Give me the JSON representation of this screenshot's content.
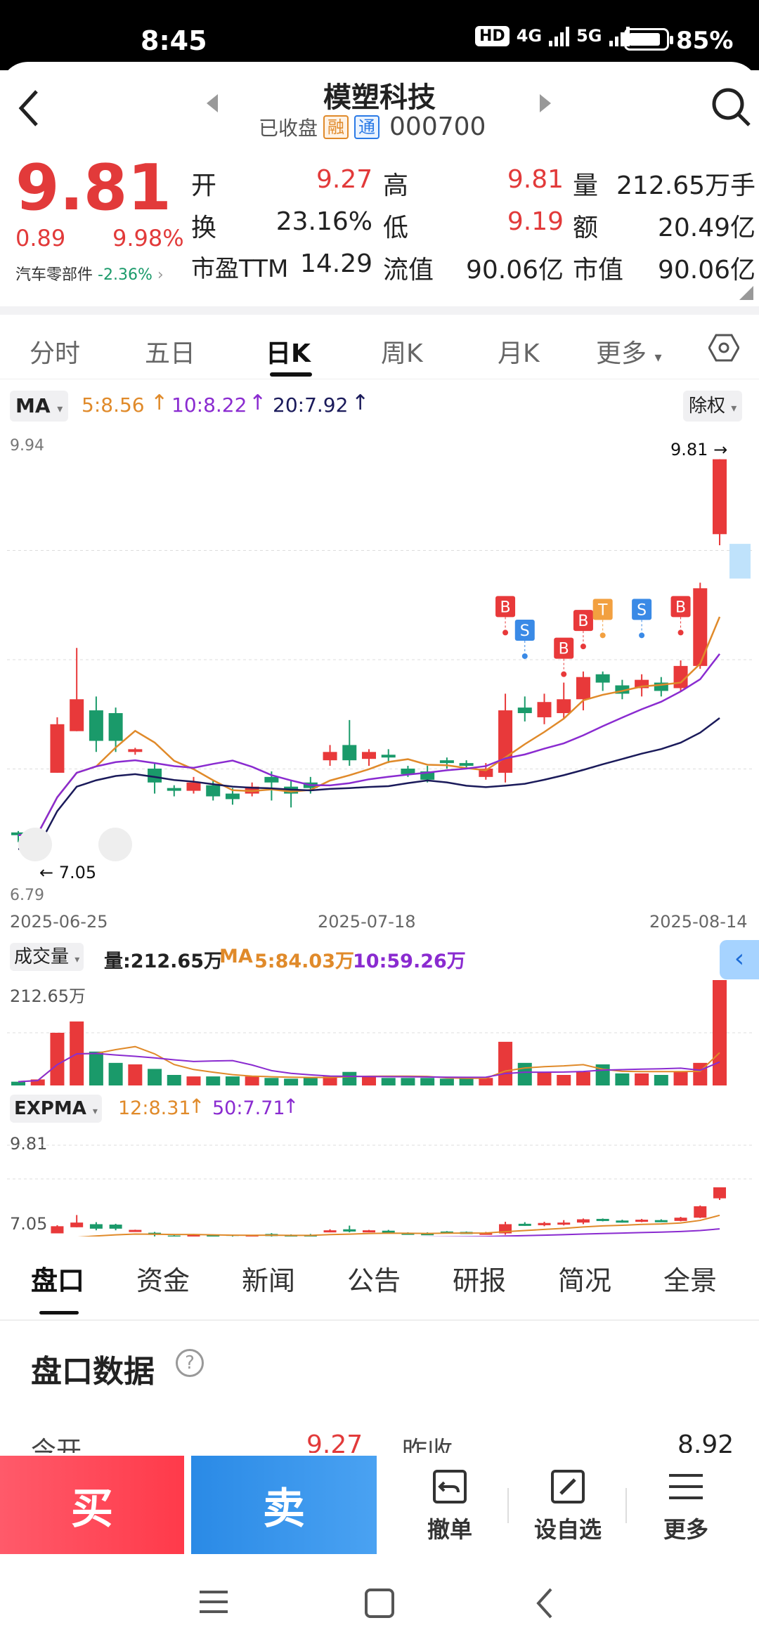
{
  "status": {
    "time": "8:45",
    "hd": "HD",
    "net1": "4G",
    "net2": "5G",
    "battery": "85%"
  },
  "header": {
    "name": "模塑科技",
    "state": "已收盘",
    "tag1": "融",
    "tag2": "通",
    "code": "000700"
  },
  "quote": {
    "price": "9.81",
    "change": "0.89",
    "change_pct": "9.98%",
    "industry": "汽车零部件",
    "industry_pct": "-2.36%",
    "rows": [
      {
        "l1": "开",
        "v1": "9.27",
        "l2": "高",
        "v2": "9.81",
        "l3": "量",
        "v3": "212.65万手"
      },
      {
        "l1": "换",
        "v1": "23.16%",
        "l2": "低",
        "v2": "9.19",
        "l3": "额",
        "v3": "20.49亿"
      },
      {
        "l1": "市盈TTM",
        "v1": "14.29",
        "l2": "流值",
        "v2": "90.06亿",
        "l3": "市值",
        "v3": "90.06亿"
      }
    ]
  },
  "tabs": [
    "分时",
    "五日",
    "日K",
    "周K",
    "月K",
    "更多"
  ],
  "ma": {
    "label": "MA",
    "ma5": "5:8.56",
    "ma10": "10:8.22",
    "ma20": "20:7.92",
    "adj": "除权"
  },
  "kchart": {
    "ymax": "9.94",
    "ymin": "6.79",
    "high_label": "9.81",
    "low_label": "7.05",
    "dates": [
      "2025-06-25",
      "2025-07-18",
      "2025-08-14"
    ]
  },
  "volume": {
    "label": "成交量",
    "vol": "量:212.65万",
    "ma_label": "MA",
    "ma5": "5:84.03万",
    "ma10": "10:59.26万",
    "ymax": "212.65万"
  },
  "expma": {
    "label": "EXPMA",
    "e12": "12:8.31",
    "e50": "50:7.71",
    "ymax": "9.81",
    "ymin": "7.05"
  },
  "bottom_tabs": [
    "盘口",
    "资金",
    "新闻",
    "公告",
    "研报",
    "简况",
    "全景"
  ],
  "panel": {
    "title": "盘口数据",
    "open_label": "今开",
    "open": "9.27",
    "prev_label": "昨收",
    "prev": "8.92"
  },
  "actions": {
    "buy": "买",
    "sell": "卖",
    "cancel": "撤单",
    "watch": "设自选",
    "more": "更多"
  },
  "chart_data": {
    "type": "candlestick",
    "x": [
      "2025-06-25",
      "2025-07-18",
      "2025-08-14"
    ],
    "ylim": [
      6.79,
      9.94
    ],
    "last_close": 9.81,
    "low_marker": 7.05
  }
}
